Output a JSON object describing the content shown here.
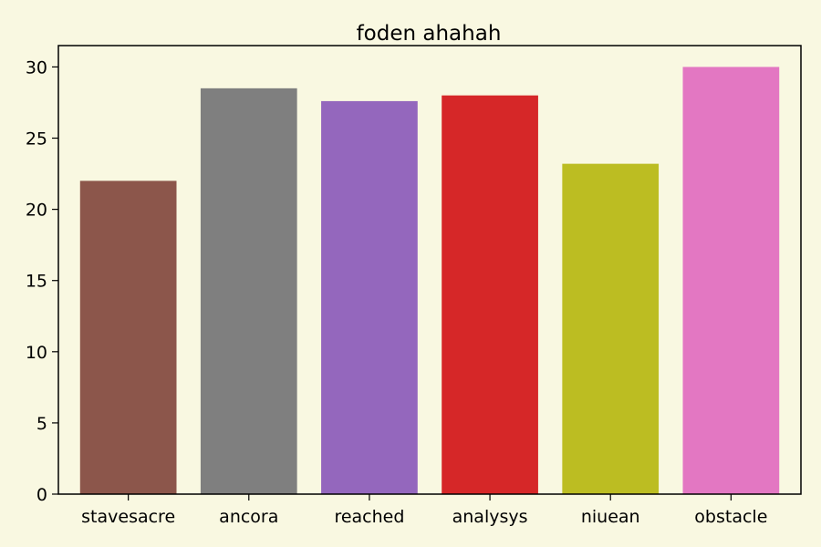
{
  "chart_data": {
    "type": "bar",
    "title": "foden ahahah",
    "xlabel": "",
    "ylabel": "",
    "categories": [
      "stavesacre",
      "ancora",
      "reached",
      "analysys",
      "niuean",
      "obstacle"
    ],
    "values": [
      22.0,
      28.5,
      27.6,
      28.0,
      23.2,
      30.0
    ],
    "colors": [
      "#8c564b",
      "#7f7f7f",
      "#9467bd",
      "#d62728",
      "#bcbd22",
      "#e377c2"
    ],
    "ylim": [
      0,
      31.5
    ],
    "yticks": [
      0,
      5,
      10,
      15,
      20,
      25,
      30
    ],
    "grid": false,
    "background": "#f9f8e1"
  }
}
